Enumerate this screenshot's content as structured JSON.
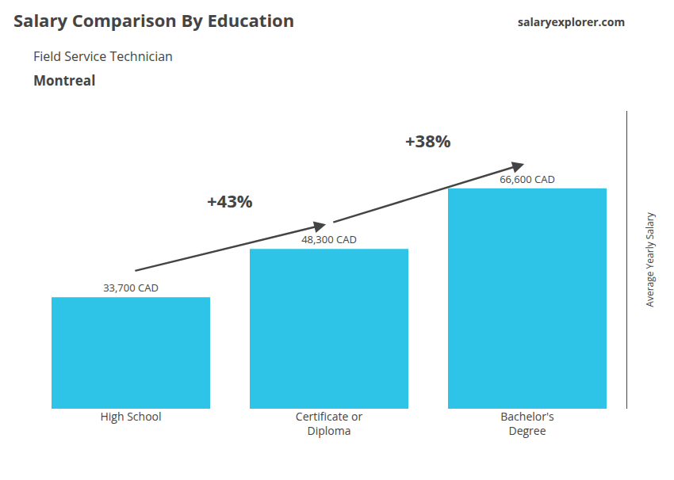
{
  "chart_data": {
    "type": "bar",
    "title": "Salary Comparison By Education",
    "subtitle": "Field Service Technician",
    "annotations": [
      "Montreal",
      "salaryexplorer.com"
    ],
    "ylabel": "Average Yearly Salary",
    "categories": [
      "High School",
      "Certificate or\nDiploma",
      "Bachelor's\nDegree"
    ],
    "values": [
      33700,
      48300,
      66600
    ],
    "value_labels": [
      "33,700 CAD",
      "48,300 CAD",
      "66,600 CAD"
    ],
    "data_labels": true,
    "changes": [
      {
        "from": "High School",
        "to": "Certificate or\nDiploma",
        "label": "+43%"
      },
      {
        "from": "Certificate or\nDiploma",
        "to": "Bachelor's\nDegree",
        "label": "+38%"
      }
    ],
    "color": "#2ec4e8",
    "ylim": [
      0,
      90000
    ],
    "tick_labels": "x",
    "grid": false
  }
}
